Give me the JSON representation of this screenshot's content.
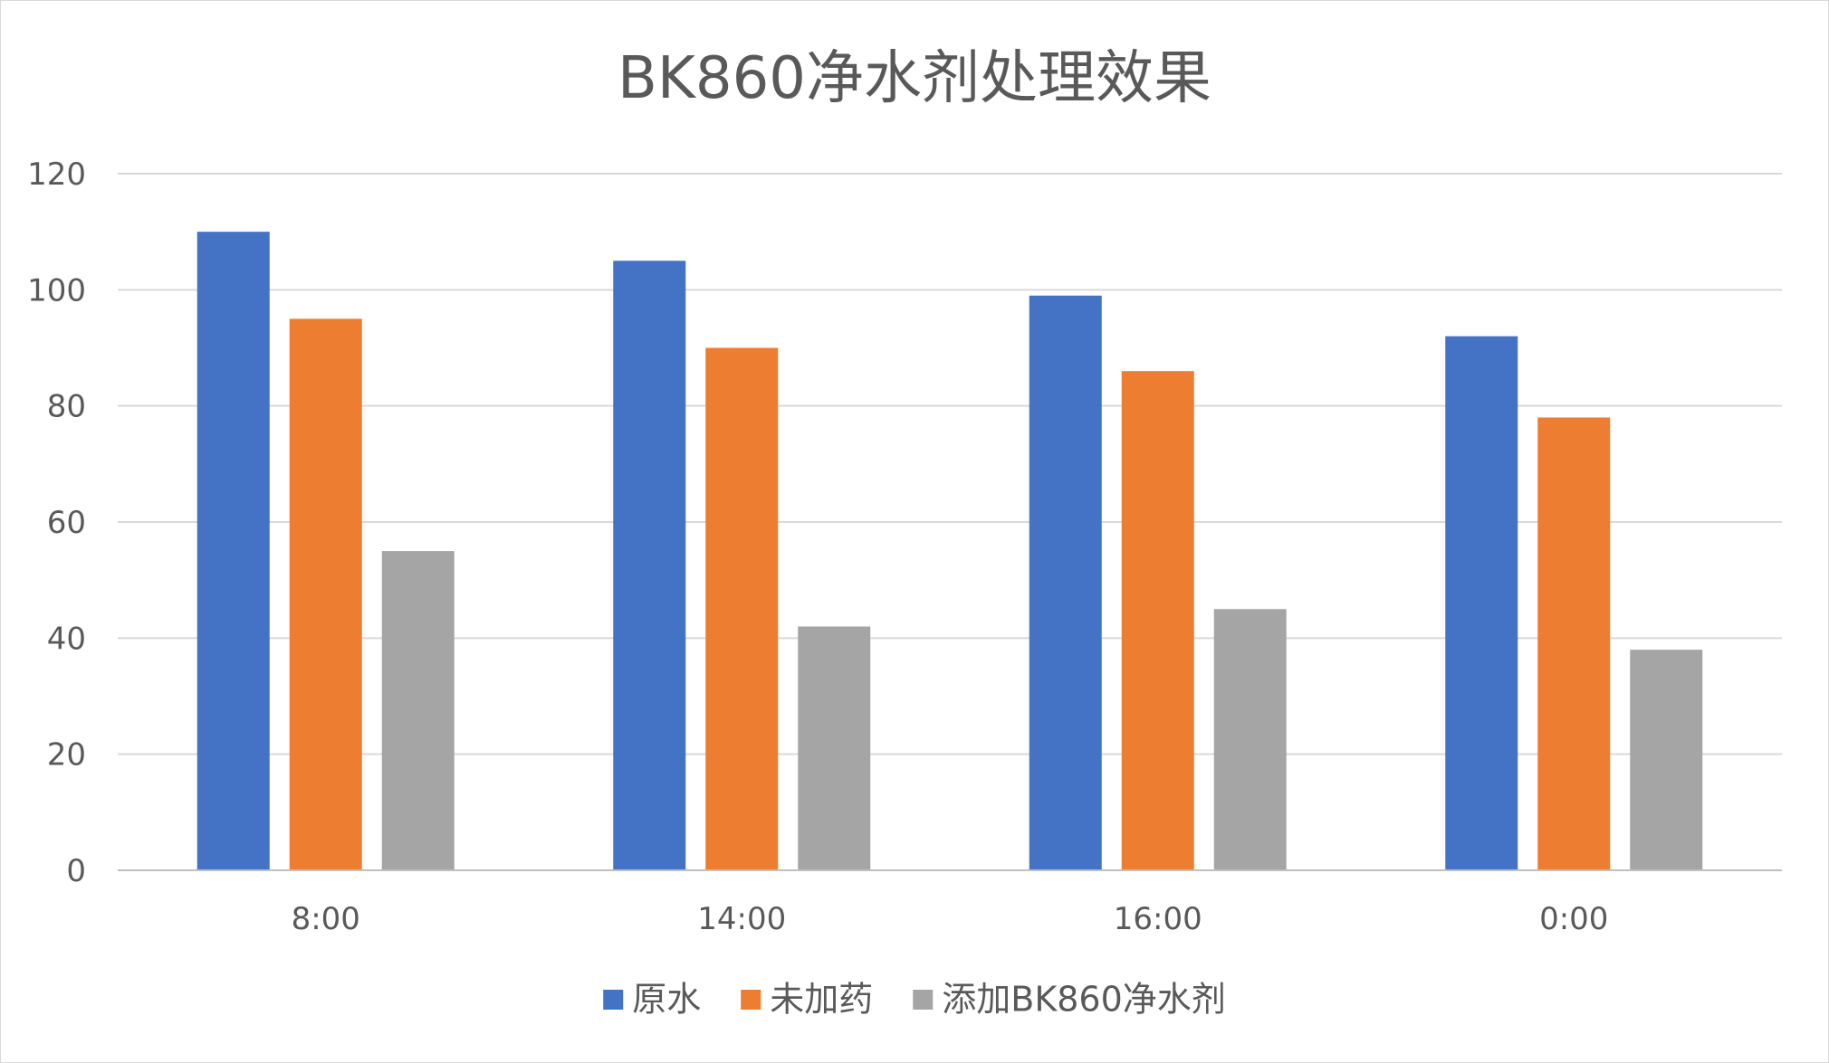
{
  "chart_data": {
    "type": "bar",
    "title": "BK860净水剂处理效果",
    "categories": [
      "8:00",
      "14:00",
      "16:00",
      "0:00"
    ],
    "series": [
      {
        "name": "原水",
        "values": [
          110,
          105,
          99,
          92
        ],
        "color": "#4472C4"
      },
      {
        "name": "未加药",
        "values": [
          95,
          90,
          86,
          78
        ],
        "color": "#ED7D31"
      },
      {
        "name": "添加BK860净水剂",
        "values": [
          55,
          42,
          45,
          38
        ],
        "color": "#A5A5A5"
      }
    ],
    "ylim": [
      0,
      120
    ],
    "yticks": [
      0,
      20,
      40,
      60,
      80,
      100,
      120
    ],
    "grid": true,
    "legend_position": "bottom",
    "colors": {
      "gridline": "#d9d9d9",
      "axis_line": "#bfbfbf",
      "text": "#595959"
    }
  }
}
